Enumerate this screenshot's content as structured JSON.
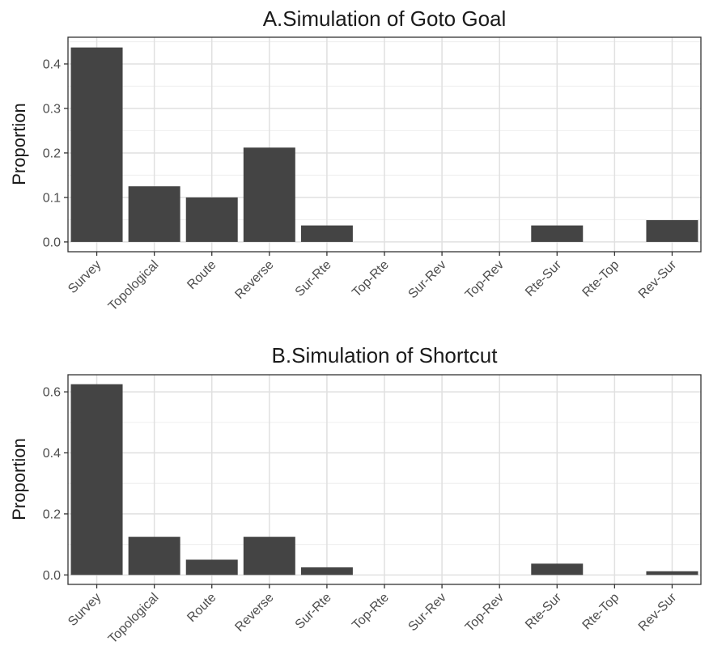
{
  "chart_data": [
    {
      "type": "bar",
      "title": "A.Simulation of Goto Goal",
      "xlabel": "",
      "ylabel": "Proportion",
      "categories": [
        "Survey",
        "Topological",
        "Route",
        "Reverse",
        "Sur-Rte",
        "Top-Rte",
        "Sur-Rev",
        "Top-Rev",
        "Rte-Sur",
        "Rte-Top",
        "Rev-Sur"
      ],
      "values": [
        0.437,
        0.125,
        0.1,
        0.212,
        0.037,
        0,
        0,
        0,
        0.037,
        0,
        0.049
      ],
      "ylim": [
        -0.022,
        0.46
      ],
      "yticks": [
        0.0,
        0.1,
        0.2,
        0.3,
        0.4
      ],
      "ytick_labels": [
        "0.0",
        "0.1",
        "0.2",
        "0.3",
        "0.4"
      ],
      "grid": true,
      "colors": {
        "bar": "#444444",
        "grid_major": "#e0e0e0",
        "grid_minor": "#f0f0f0",
        "panel_border": "#333333"
      }
    },
    {
      "type": "bar",
      "title": "B.Simulation of Shortcut",
      "xlabel": "",
      "ylabel": "Proportion",
      "categories": [
        "Survey",
        "Topological",
        "Route",
        "Reverse",
        "Sur-Rte",
        "Top-Rte",
        "Sur-Rev",
        "Top-Rev",
        "Rte-Sur",
        "Rte-Top",
        "Rev-Sur"
      ],
      "values": [
        0.625,
        0.125,
        0.05,
        0.125,
        0.025,
        0,
        0,
        0,
        0.037,
        0,
        0.012
      ],
      "ylim": [
        -0.031,
        0.656
      ],
      "yticks": [
        0.0,
        0.2,
        0.4,
        0.6
      ],
      "ytick_labels": [
        "0.0",
        "0.2",
        "0.4",
        "0.6"
      ],
      "grid": true,
      "colors": {
        "bar": "#444444",
        "grid_major": "#e0e0e0",
        "grid_minor": "#f0f0f0",
        "panel_border": "#333333"
      }
    }
  ]
}
